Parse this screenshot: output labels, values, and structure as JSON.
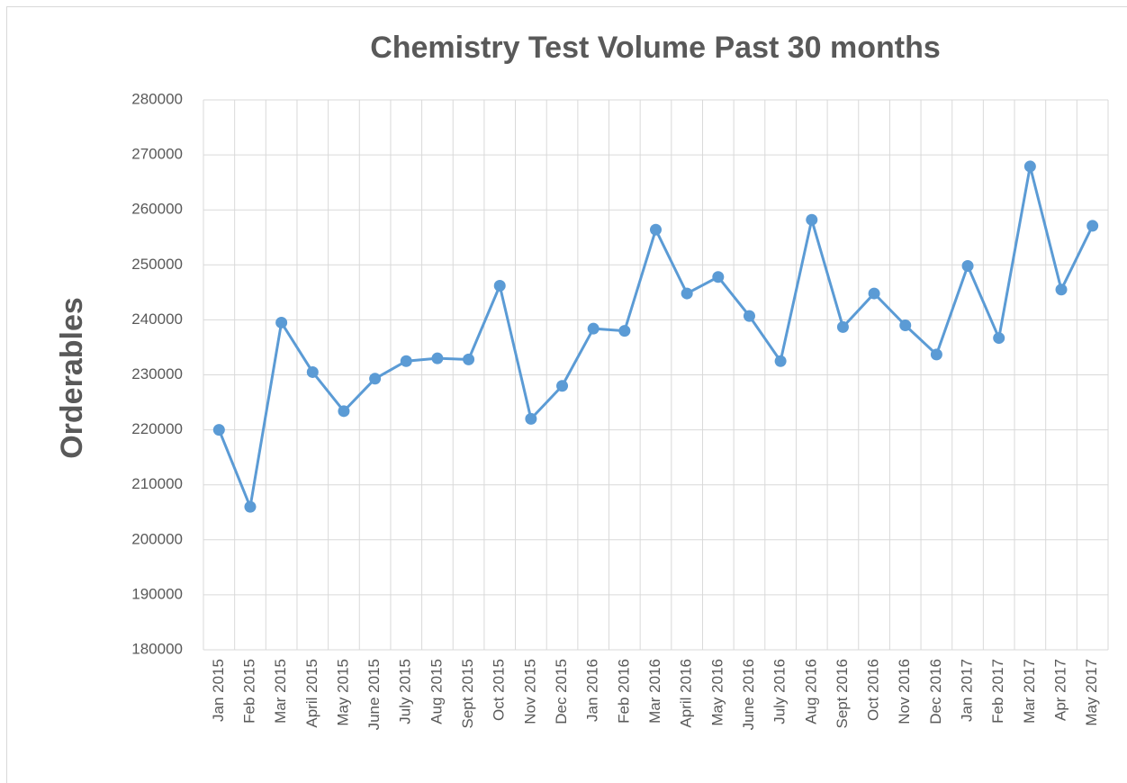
{
  "chart_data": {
    "type": "line",
    "title": "Chemistry Test Volume Past 30 months",
    "y_label": "Orderables",
    "categories": [
      "Jan 2015",
      "Feb 2015",
      "Mar 2015",
      "April 2015",
      "May 2015",
      "June 2015",
      "July 2015",
      "Aug 2015",
      "Sept 2015",
      "Oct 2015",
      "Nov 2015",
      "Dec 2015",
      "Jan 2016",
      "Feb 2016",
      "Mar 2016",
      "April 2016",
      "May 2016",
      "June 2016",
      "July 2016",
      "Aug 2016",
      "Sept 2016",
      "Oct 2016",
      "Nov 2016",
      "Dec 2016",
      "Jan 2017",
      "Feb 2017",
      "Mar 2017",
      "Apr 2017",
      "May 2017"
    ],
    "values": [
      220000,
      206000,
      239500,
      230500,
      223400,
      229300,
      232500,
      233000,
      232800,
      246200,
      222000,
      228000,
      238400,
      238000,
      256400,
      244800,
      247800,
      240700,
      232500,
      258200,
      238700,
      244800,
      239000,
      233700,
      249800,
      236700,
      267900,
      245500,
      257100
    ],
    "color": "#5b9bd5",
    "ylim": [
      180000,
      280000
    ],
    "yticks": [
      180000,
      190000,
      200000,
      210000,
      220000,
      230000,
      240000,
      250000,
      260000,
      270000,
      280000
    ],
    "grid": true
  }
}
